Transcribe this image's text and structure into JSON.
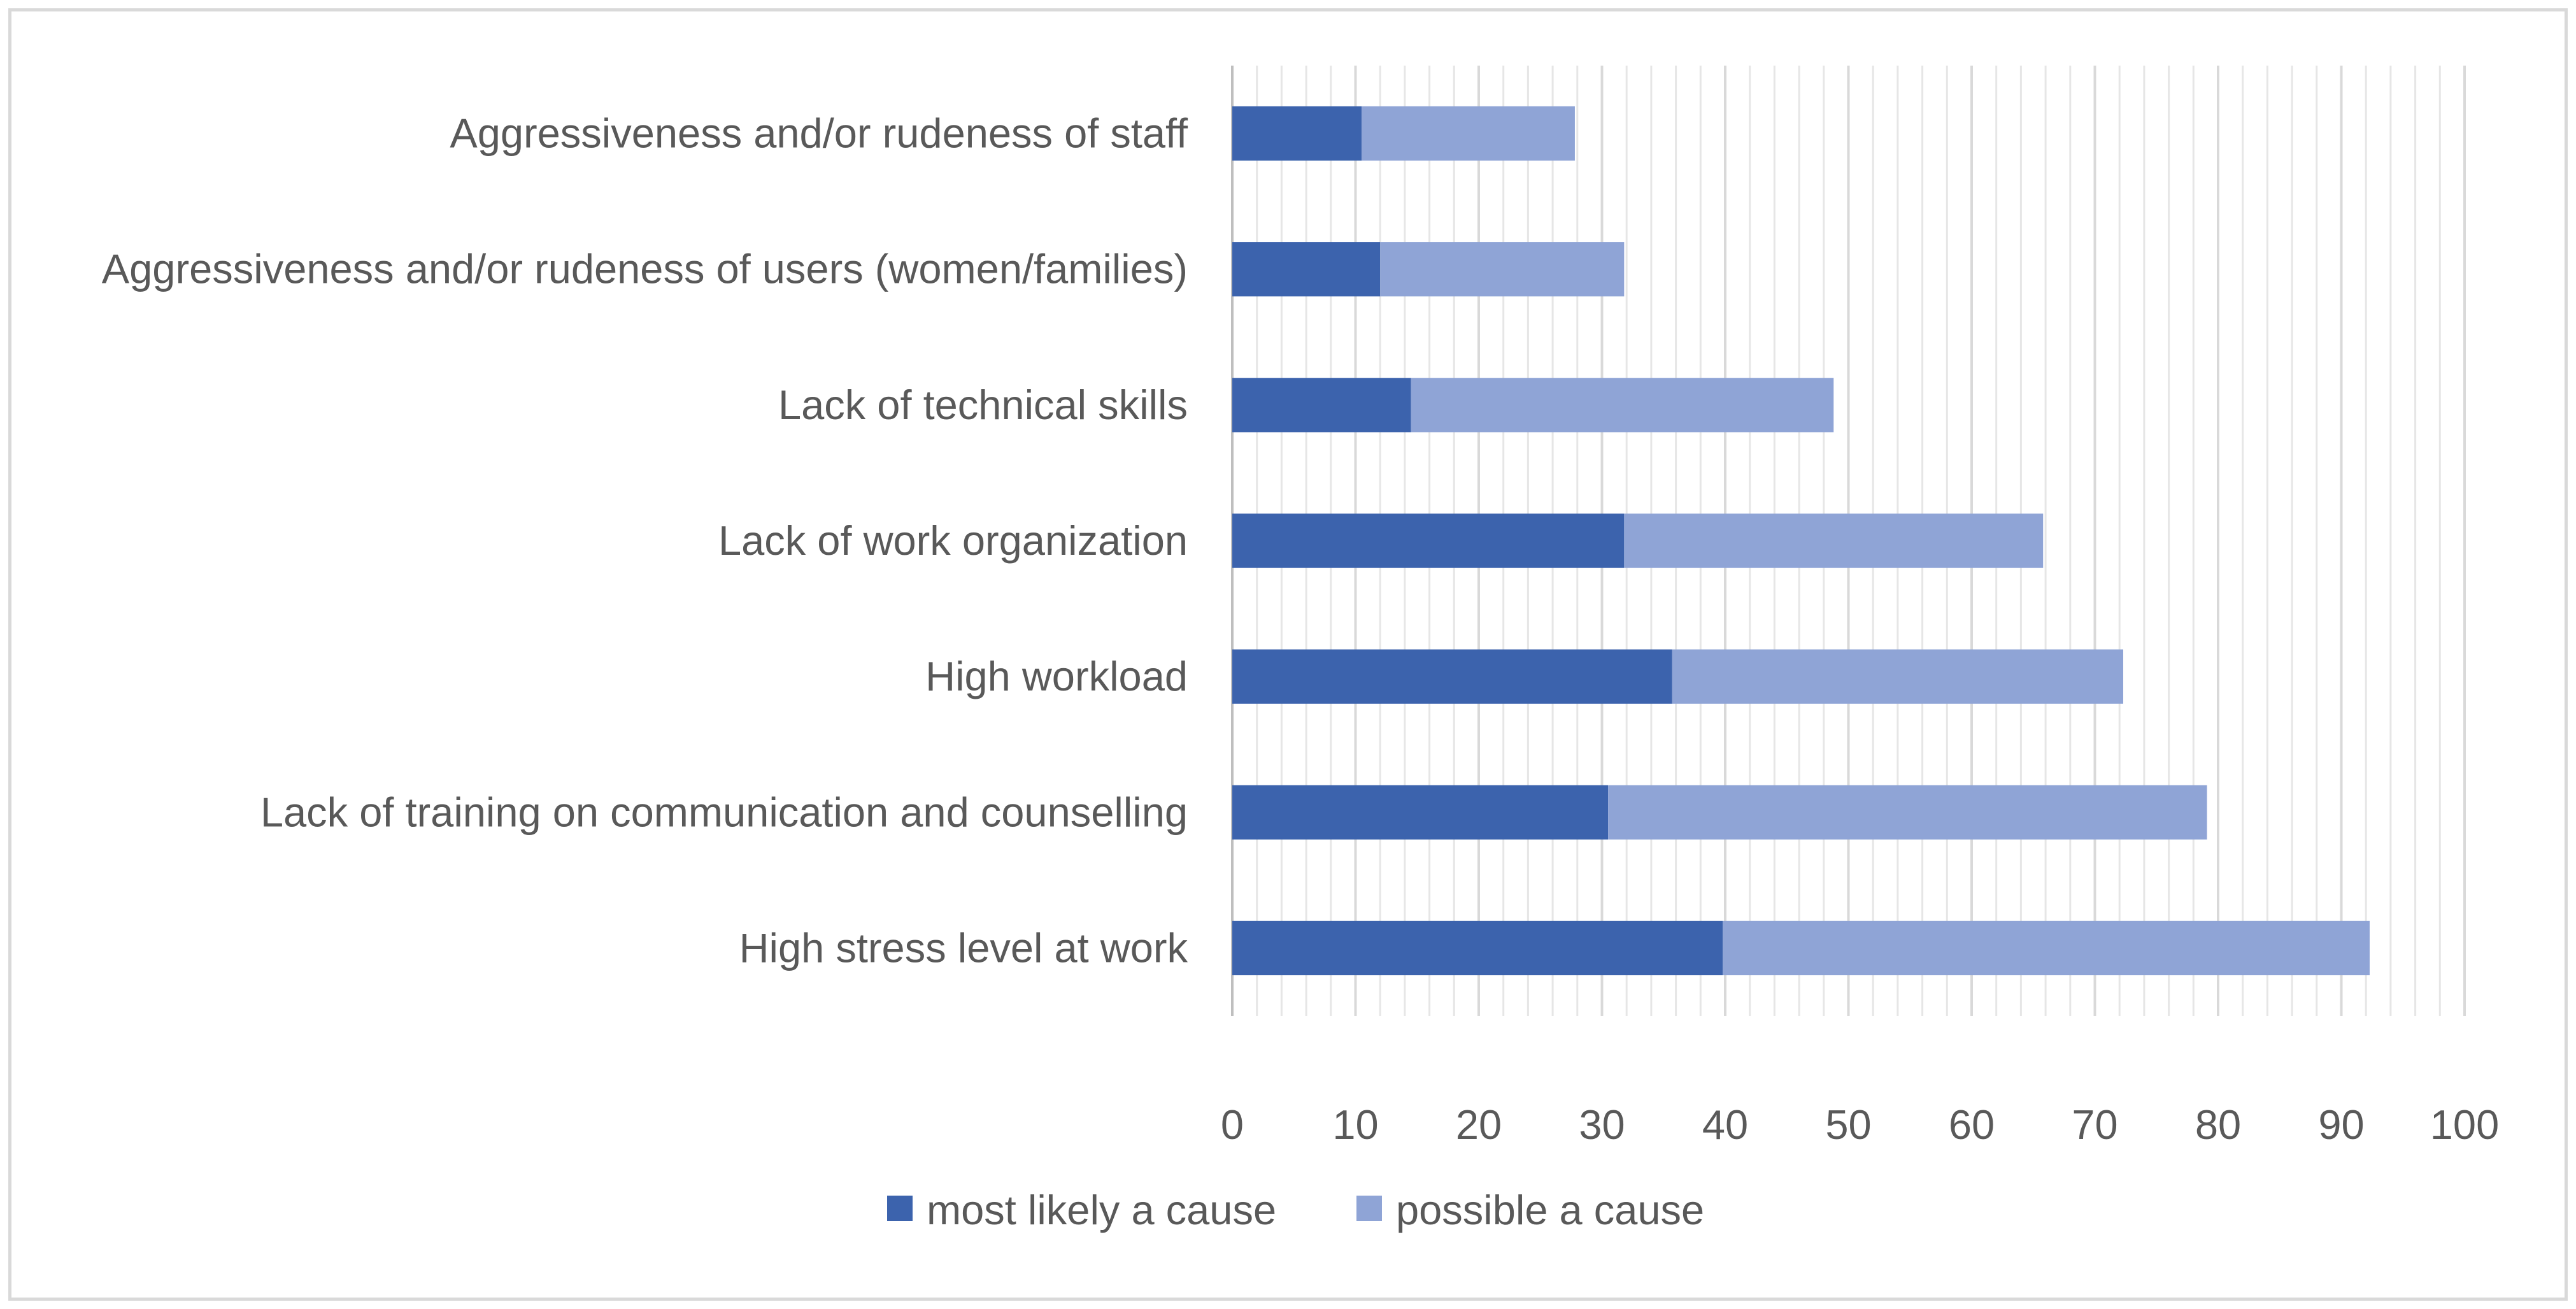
{
  "chart_data": {
    "type": "bar",
    "orientation": "horizontal",
    "stacked": true,
    "categories": [
      "Aggressiveness and/or rudeness of staff",
      "Aggressiveness and/or rudeness of users (women/families)",
      "Lack of technical skills",
      "Lack of work organization",
      "High workload",
      "Lack of training on communication and counselling",
      "High stress level at work"
    ],
    "series": [
      {
        "name": "most likely a cause",
        "color": "#3c63ad",
        "values": [
          10.5,
          12,
          14.5,
          31.8,
          35.7,
          30.5,
          39.8
        ]
      },
      {
        "name": "possible a cause",
        "color": "#8fa4d6",
        "values": [
          17.3,
          19.8,
          34.3,
          34.0,
          36.6,
          48.6,
          52.5
        ]
      }
    ],
    "x_ticks": [
      "0",
      "10",
      "20",
      "30",
      "40",
      "50",
      "60",
      "70",
      "80",
      "90",
      "100"
    ],
    "xlim": [
      0,
      100
    ],
    "grid": "vertical minor gridlines every 2 units",
    "legend_position": "bottom",
    "title": "",
    "xlabel": "",
    "ylabel": ""
  }
}
